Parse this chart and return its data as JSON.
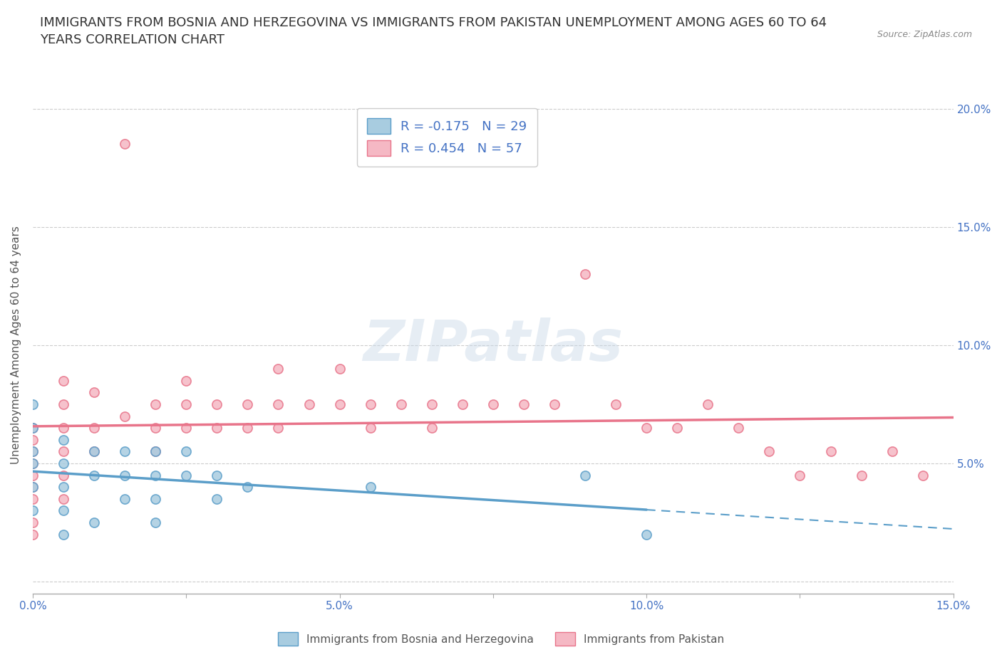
{
  "title": "IMMIGRANTS FROM BOSNIA AND HERZEGOVINA VS IMMIGRANTS FROM PAKISTAN UNEMPLOYMENT AMONG AGES 60 TO 64\nYEARS CORRELATION CHART",
  "source_text": "Source: ZipAtlas.com",
  "ylabel": "Unemployment Among Ages 60 to 64 years",
  "xlim": [
    0.0,
    0.15
  ],
  "ylim": [
    -0.005,
    0.205
  ],
  "xticks": [
    0.0,
    0.025,
    0.05,
    0.075,
    0.1,
    0.125,
    0.15
  ],
  "xticklabels": [
    "0.0%",
    "",
    "5.0%",
    "",
    "10.0%",
    "",
    "15.0%"
  ],
  "ytick_positions": [
    0.0,
    0.05,
    0.1,
    0.15,
    0.2
  ],
  "ytick_labels": [
    "",
    "5.0%",
    "10.0%",
    "15.0%",
    "20.0%"
  ],
  "bosnia_color": "#a8cce0",
  "pakistan_color": "#f5b8c4",
  "bosnia_edge": "#5b9ec9",
  "pakistan_edge": "#e8748a",
  "watermark": "ZIPatlas",
  "legend_r_bosnia": "R = -0.175",
  "legend_n_bosnia": "N = 29",
  "legend_r_pakistan": "R = 0.454",
  "legend_n_pakistan": "N = 57",
  "bosnia_x": [
    0.0,
    0.0,
    0.0,
    0.0,
    0.0,
    0.0,
    0.005,
    0.005,
    0.005,
    0.005,
    0.005,
    0.01,
    0.01,
    0.01,
    0.015,
    0.015,
    0.015,
    0.02,
    0.02,
    0.02,
    0.02,
    0.025,
    0.025,
    0.03,
    0.03,
    0.035,
    0.055,
    0.09,
    0.1
  ],
  "bosnia_y": [
    0.075,
    0.065,
    0.055,
    0.05,
    0.04,
    0.03,
    0.06,
    0.05,
    0.04,
    0.03,
    0.02,
    0.055,
    0.045,
    0.025,
    0.055,
    0.045,
    0.035,
    0.055,
    0.045,
    0.035,
    0.025,
    0.055,
    0.045,
    0.045,
    0.035,
    0.04,
    0.04,
    0.045,
    0.02
  ],
  "pakistan_x": [
    0.0,
    0.0,
    0.0,
    0.0,
    0.0,
    0.0,
    0.0,
    0.0,
    0.0,
    0.005,
    0.005,
    0.005,
    0.005,
    0.005,
    0.005,
    0.01,
    0.01,
    0.01,
    0.015,
    0.015,
    0.02,
    0.02,
    0.02,
    0.025,
    0.025,
    0.025,
    0.03,
    0.03,
    0.035,
    0.035,
    0.04,
    0.04,
    0.04,
    0.045,
    0.05,
    0.05,
    0.055,
    0.055,
    0.06,
    0.065,
    0.065,
    0.07,
    0.075,
    0.08,
    0.085,
    0.09,
    0.095,
    0.1,
    0.105,
    0.11,
    0.115,
    0.12,
    0.125,
    0.13,
    0.135,
    0.14,
    0.145
  ],
  "pakistan_y": [
    0.065,
    0.06,
    0.055,
    0.05,
    0.045,
    0.04,
    0.035,
    0.025,
    0.02,
    0.085,
    0.075,
    0.065,
    0.055,
    0.045,
    0.035,
    0.08,
    0.065,
    0.055,
    0.185,
    0.07,
    0.075,
    0.065,
    0.055,
    0.085,
    0.075,
    0.065,
    0.075,
    0.065,
    0.075,
    0.065,
    0.09,
    0.075,
    0.065,
    0.075,
    0.09,
    0.075,
    0.075,
    0.065,
    0.075,
    0.075,
    0.065,
    0.075,
    0.075,
    0.075,
    0.075,
    0.13,
    0.075,
    0.065,
    0.065,
    0.075,
    0.065,
    0.055,
    0.045,
    0.055,
    0.045,
    0.055,
    0.045
  ],
  "bg_color": "#ffffff",
  "grid_color": "#cccccc",
  "title_fontsize": 13,
  "axis_label_fontsize": 11,
  "tick_fontsize": 11,
  "source_fontsize": 9
}
